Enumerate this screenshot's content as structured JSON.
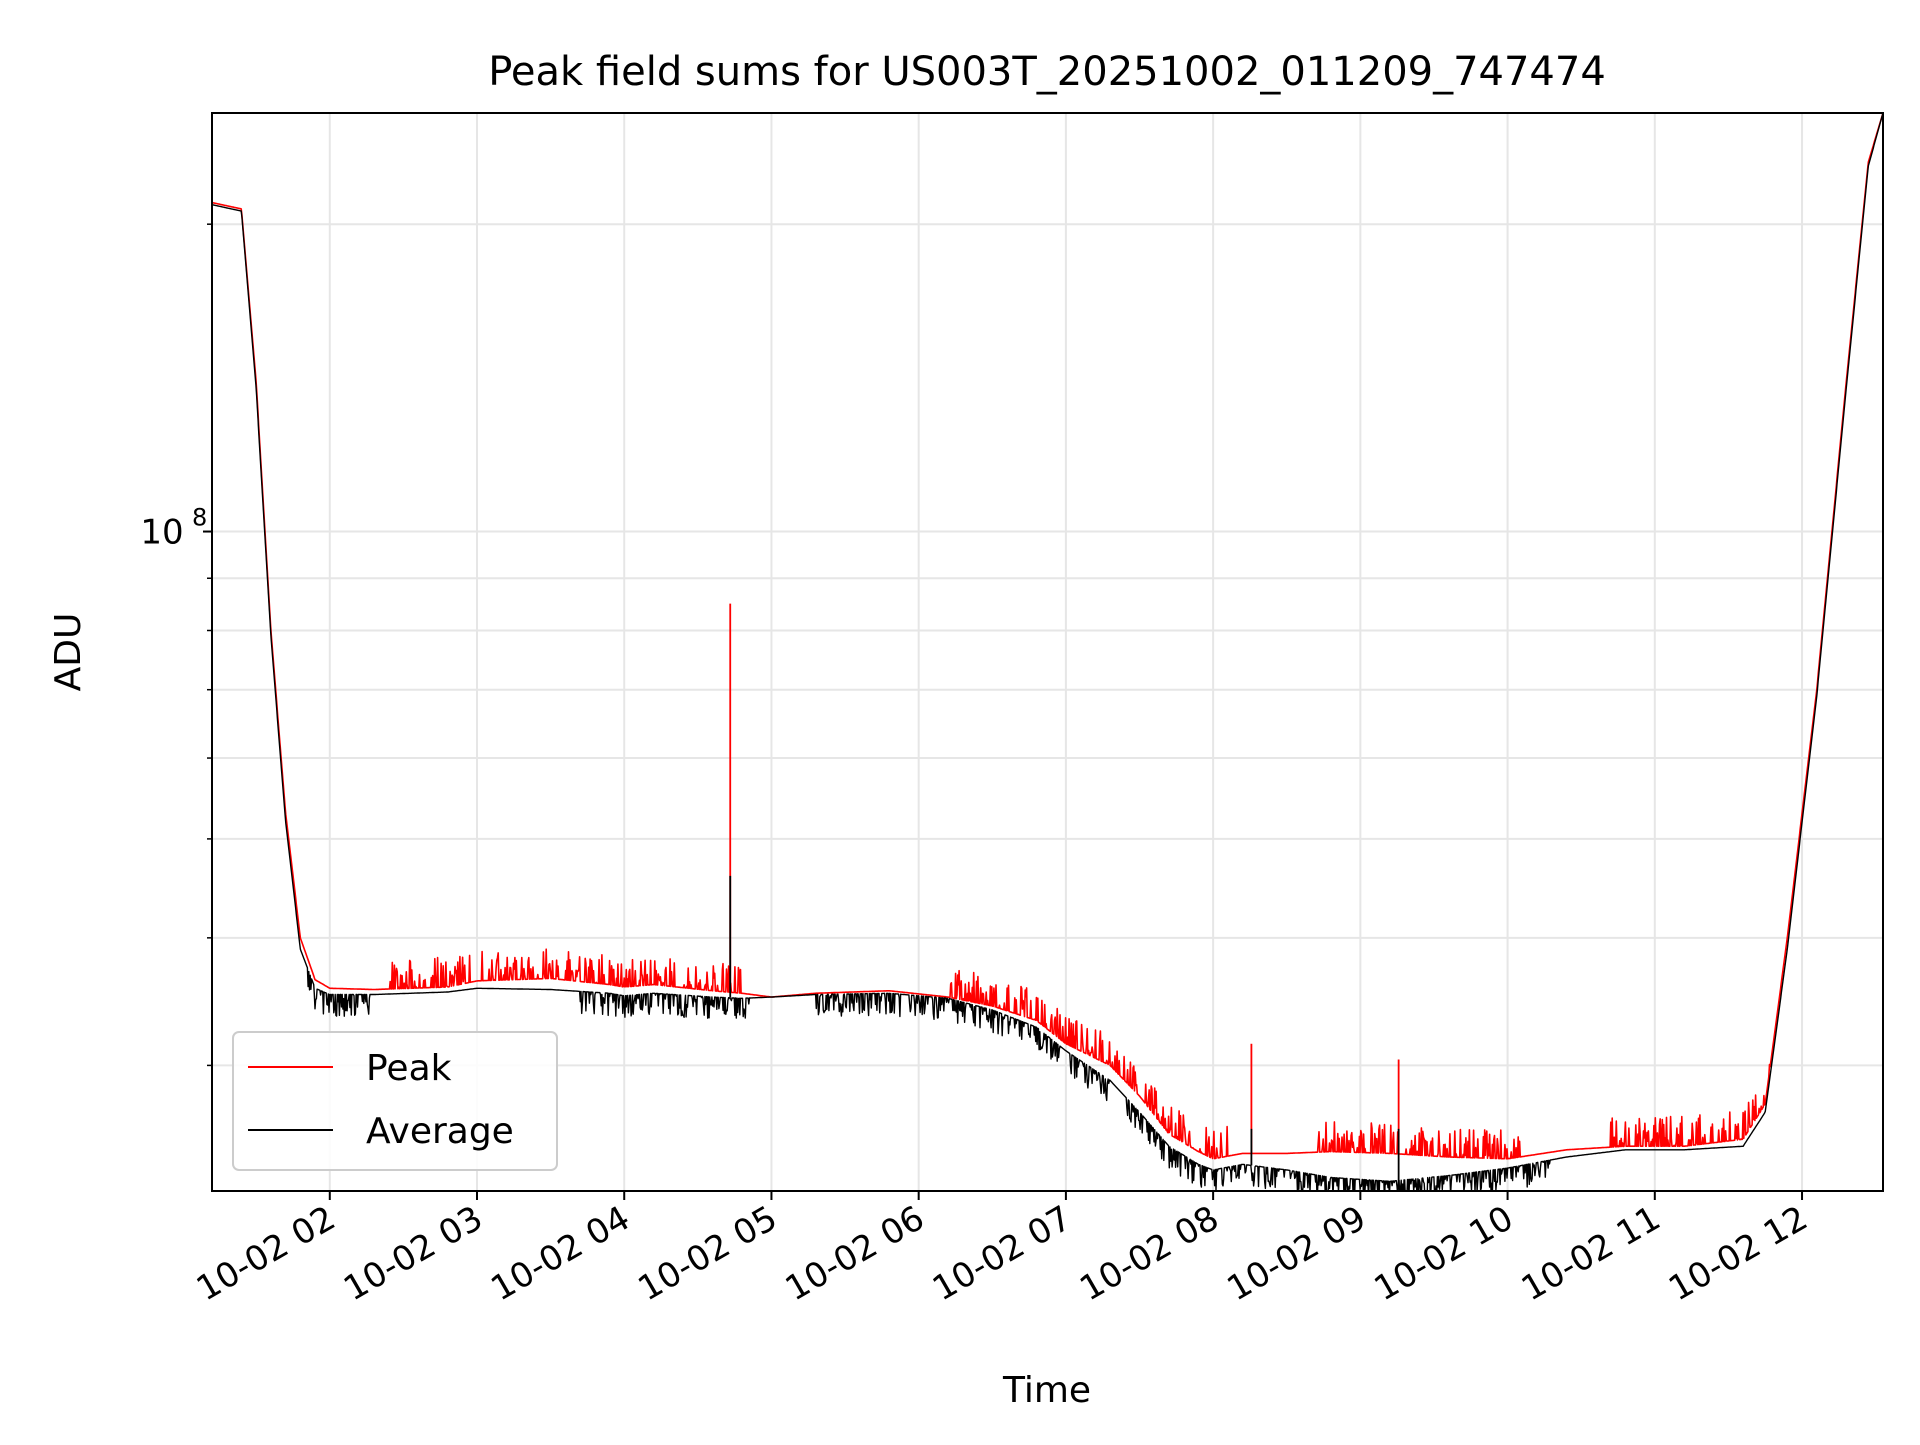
{
  "chart_data": {
    "type": "line",
    "title": "Peak field sums for US003T_20251002_011209_747474",
    "xlabel": "Time",
    "ylabel": "ADU",
    "yscale": "log",
    "ylim": [
      22600000,
      257000000
    ],
    "xlim": [
      1.2,
      12.55
    ],
    "grid": true,
    "legend_position": "lower-left",
    "x_tick_values": [
      2,
      3,
      4,
      5,
      6,
      7,
      8,
      9,
      10,
      11,
      12
    ],
    "x_tick_labels": [
      "10-02 02",
      "10-02 03",
      "10-02 04",
      "10-02 05",
      "10-02 06",
      "10-02 07",
      "10-02 08",
      "10-02 09",
      "10-02 10",
      "10-02 11",
      "10-02 12"
    ],
    "y_major_ticks": [
      {
        "value": 100000000,
        "base": "10",
        "exp": "8"
      }
    ],
    "y_minor_ticks": [
      30000000,
      40000000,
      50000000,
      60000000,
      70000000,
      80000000,
      90000000,
      200000000
    ],
    "colors": {
      "peak": "#ff0000",
      "average": "#000000",
      "grid": "#e6e6e6"
    },
    "series": [
      {
        "name": "Peak",
        "color": "#ff0000",
        "points": [
          [
            1.2,
            210000000
          ],
          [
            1.4,
            207000000
          ],
          [
            1.5,
            140000000
          ],
          [
            1.6,
            80000000
          ],
          [
            1.7,
            53000000
          ],
          [
            1.8,
            40000000
          ],
          [
            1.9,
            36400000
          ],
          [
            2.0,
            35700000
          ],
          [
            2.3,
            35600000
          ],
          [
            2.8,
            35800000
          ],
          [
            3.0,
            36300000
          ],
          [
            3.5,
            36500000
          ],
          [
            3.9,
            36000000
          ],
          [
            4.0,
            35800000
          ],
          [
            4.2,
            36000000
          ],
          [
            4.6,
            35500000
          ],
          [
            4.8,
            35300000
          ],
          [
            5.0,
            35000000
          ],
          [
            5.3,
            35300000
          ],
          [
            5.8,
            35500000
          ],
          [
            6.2,
            35000000
          ],
          [
            6.5,
            34300000
          ],
          [
            6.8,
            33200000
          ],
          [
            7.0,
            31500000
          ],
          [
            7.3,
            30000000
          ],
          [
            7.5,
            28000000
          ],
          [
            7.7,
            25700000
          ],
          [
            7.9,
            24700000
          ],
          [
            8.0,
            24300000
          ],
          [
            8.2,
            24600000
          ],
          [
            8.5,
            24600000
          ],
          [
            8.8,
            24700000
          ],
          [
            9.2,
            24600000
          ],
          [
            9.6,
            24400000
          ],
          [
            10.0,
            24300000
          ],
          [
            10.4,
            24800000
          ],
          [
            10.8,
            25000000
          ],
          [
            11.2,
            25000000
          ],
          [
            11.6,
            25400000
          ],
          [
            11.75,
            27500000
          ],
          [
            11.9,
            40000000
          ],
          [
            12.1,
            70000000
          ],
          [
            12.3,
            140000000
          ],
          [
            12.45,
            230000000
          ],
          [
            12.55,
            257000000
          ]
        ]
      },
      {
        "name": "Average",
        "color": "#000000",
        "points": [
          [
            1.2,
            209000000
          ],
          [
            1.4,
            206000000
          ],
          [
            1.5,
            138000000
          ],
          [
            1.6,
            79000000
          ],
          [
            1.7,
            52000000
          ],
          [
            1.8,
            39000000
          ],
          [
            1.9,
            35700000
          ],
          [
            2.0,
            35200000
          ],
          [
            2.3,
            35200000
          ],
          [
            2.8,
            35400000
          ],
          [
            3.0,
            35700000
          ],
          [
            3.5,
            35600000
          ],
          [
            3.9,
            35300000
          ],
          [
            4.0,
            35100000
          ],
          [
            4.2,
            35300000
          ],
          [
            4.6,
            35000000
          ],
          [
            4.8,
            34900000
          ],
          [
            5.0,
            35000000
          ],
          [
            5.3,
            35200000
          ],
          [
            5.8,
            35300000
          ],
          [
            6.2,
            34900000
          ],
          [
            6.5,
            34000000
          ],
          [
            6.8,
            32700000
          ],
          [
            7.0,
            31000000
          ],
          [
            7.3,
            29000000
          ],
          [
            7.5,
            27000000
          ],
          [
            7.7,
            25000000
          ],
          [
            7.9,
            24000000
          ],
          [
            8.0,
            23700000
          ],
          [
            8.2,
            24000000
          ],
          [
            8.5,
            23700000
          ],
          [
            8.8,
            23300000
          ],
          [
            9.2,
            23100000
          ],
          [
            9.6,
            23400000
          ],
          [
            10.0,
            23800000
          ],
          [
            10.4,
            24400000
          ],
          [
            10.8,
            24800000
          ],
          [
            11.2,
            24800000
          ],
          [
            11.6,
            25000000
          ],
          [
            11.75,
            27000000
          ],
          [
            11.9,
            39000000
          ],
          [
            12.1,
            69000000
          ],
          [
            12.3,
            138000000
          ],
          [
            12.45,
            228000000
          ],
          [
            12.55,
            257000000
          ]
        ]
      }
    ],
    "spikes": [
      {
        "x": 4.72,
        "peak": 85000000,
        "average": 46000000
      },
      {
        "x": 8.26,
        "peak": 31500000,
        "average": 26000000
      },
      {
        "x": 9.26,
        "peak": 30400000,
        "average": 26000000
      }
    ]
  }
}
